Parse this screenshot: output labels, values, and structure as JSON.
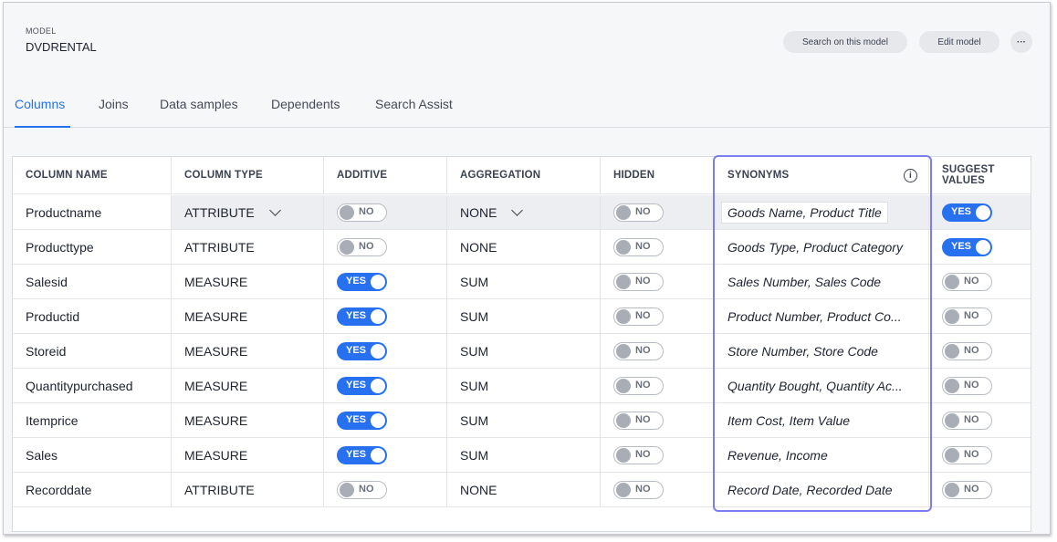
{
  "header": {
    "label": "MODEL",
    "title": "DVDRENTAL",
    "search_button": "Search on this model",
    "edit_button": "Edit model",
    "more_icon": "more-horizontal-icon"
  },
  "tabs": [
    {
      "label": "Columns",
      "active": true
    },
    {
      "label": "Joins"
    },
    {
      "label": "Data samples"
    },
    {
      "label": "Dependents"
    },
    {
      "label": "Search Assist"
    }
  ],
  "table": {
    "headers": [
      "COLUMN NAME",
      "COLUMN TYPE",
      "ADDITIVE",
      "AGGREGATION",
      "HIDDEN",
      "SYNONYMS",
      "SUGGEST VALUES"
    ],
    "rows": [
      {
        "name": "Productname",
        "type": "ATTRIBUTE",
        "additive": "NO",
        "aggregation": "NONE",
        "hidden": "NO",
        "synonyms": "Goods Name, Product Title",
        "suggest": "YES"
      },
      {
        "name": "Producttype",
        "type": "ATTRIBUTE",
        "additive": "NO",
        "aggregation": "NONE",
        "hidden": "NO",
        "synonyms": "Goods Type, Product Category",
        "suggest": "YES"
      },
      {
        "name": "Salesid",
        "type": "MEASURE",
        "additive": "YES",
        "aggregation": "SUM",
        "hidden": "NO",
        "synonyms": "Sales Number, Sales Code",
        "suggest": "NO"
      },
      {
        "name": "Productid",
        "type": "MEASURE",
        "additive": "YES",
        "aggregation": "SUM",
        "hidden": "NO",
        "synonyms": "Product Number, Product Co...",
        "suggest": "NO"
      },
      {
        "name": "Storeid",
        "type": "MEASURE",
        "additive": "YES",
        "aggregation": "SUM",
        "hidden": "NO",
        "synonyms": "Store Number, Store Code",
        "suggest": "NO"
      },
      {
        "name": "Quantitypurchased",
        "type": "MEASURE",
        "additive": "YES",
        "aggregation": "SUM",
        "hidden": "NO",
        "synonyms": "Quantity Bought, Quantity Ac...",
        "suggest": "NO"
      },
      {
        "name": "Itemprice",
        "type": "MEASURE",
        "additive": "YES",
        "aggregation": "SUM",
        "hidden": "NO",
        "synonyms": "Item Cost, Item Value",
        "suggest": "NO"
      },
      {
        "name": "Sales",
        "type": "MEASURE",
        "additive": "YES",
        "aggregation": "SUM",
        "hidden": "NO",
        "synonyms": "Revenue, Income",
        "suggest": "NO"
      },
      {
        "name": "Recorddate",
        "type": "ATTRIBUTE",
        "additive": "NO",
        "aggregation": "NONE",
        "hidden": "NO",
        "synonyms": "Record Date, Recorded Date",
        "suggest": "NO"
      }
    ]
  },
  "colors": {
    "accent": "#2770ef",
    "highlight": "#7b7ef0"
  }
}
